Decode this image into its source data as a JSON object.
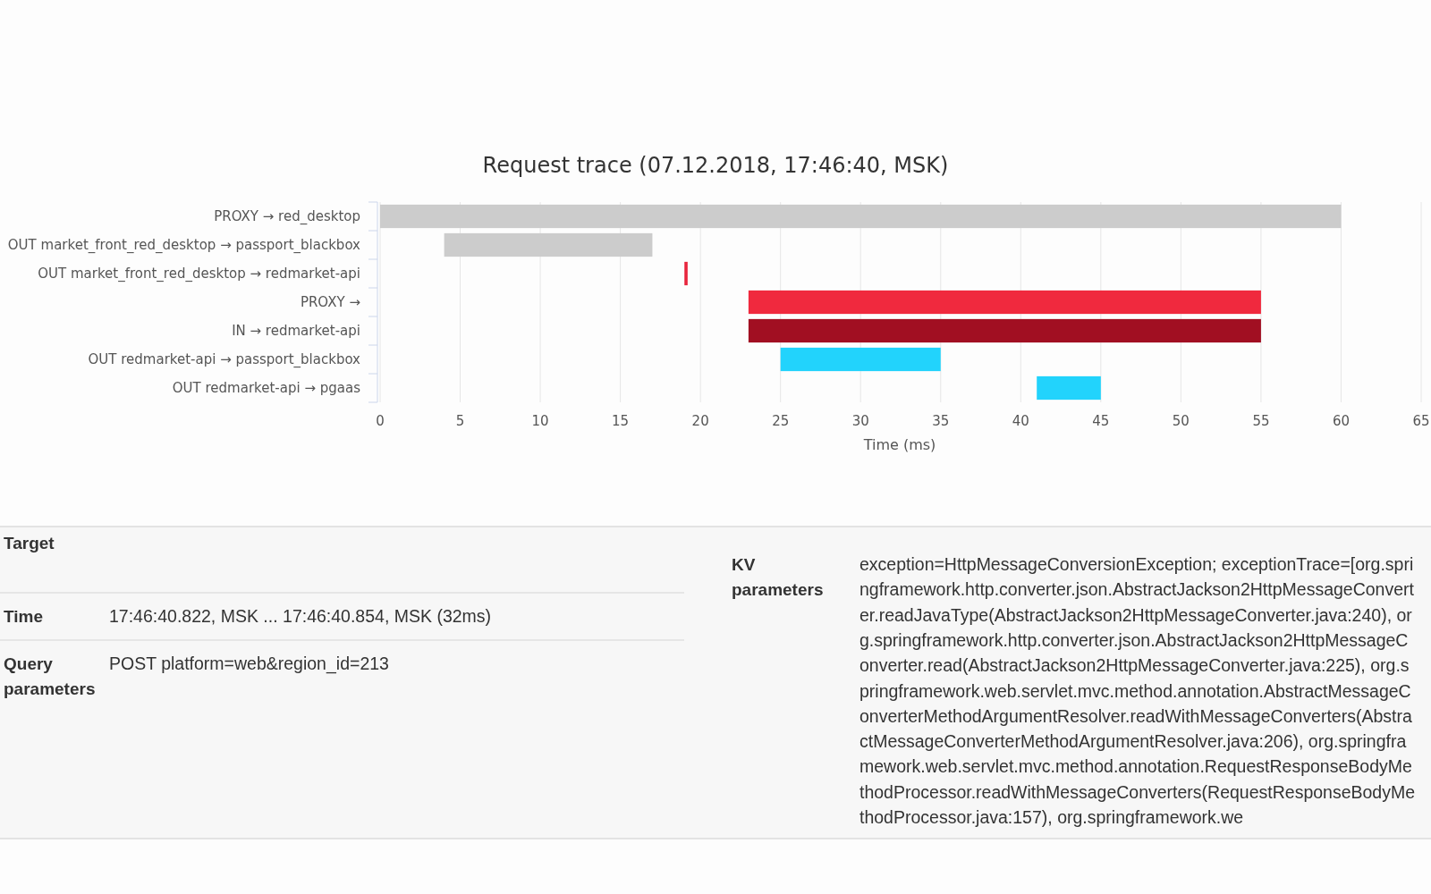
{
  "chart_data": [
    {
      "type": "bar",
      "orientation": "horizontal",
      "title": "Request trace (07.12.2018, 17:46:40, MSK)",
      "xlabel": "Time (ms)",
      "categories": [
        "PROXY → red_desktop",
        "OUT market_front_red_desktop → passport_blackbox",
        "OUT market_front_red_desktop → redmarket-api",
        "PROXY →",
        "IN → redmarket-api",
        "OUT redmarket-api → passport_blackbox",
        "OUT redmarket-api → pgaas"
      ],
      "base": [
        0,
        4,
        19,
        23,
        23,
        25,
        41
      ],
      "values": [
        60,
        13,
        0.2,
        32,
        32,
        10,
        4
      ],
      "colors": [
        "#cccccc",
        "#cccccc",
        "#e8253d",
        "#f0293e",
        "#a10f22",
        "#22d3fc",
        "#22d3fc"
      ],
      "xlim": [
        0,
        65
      ],
      "xticks": [
        0,
        5,
        10,
        15,
        20,
        25,
        30,
        35,
        40,
        45,
        50,
        55,
        60,
        65
      ],
      "grid": "x"
    },
    {
      "type": "other",
      "annotations": [
        "Target",
        "Time",
        "17:46:40.822, MSK ... 17:46:40.854, MSK (32ms)",
        "Query parameters",
        "POST platform=web&region_id=213",
        "KV parameters",
        "exception=HttpMessageConversionException; exceptionTrace=[org.springframework.http.converter.json.AbstractJackson2HttpMessageConverter.readJavaType(AbstractJackson2HttpMessageConverter.java:240), org.springframework.http.converter.json.AbstractJackson2HttpMessageConverter.read(AbstractJackson2HttpMessageConverter.java:225), org.springframework.web.servlet.mvc.method.annotation.AbstractMessageConverterMethodArgumentResolver.readWithMessageConverters(AbstractMessageConverterMethodArgumentResolver.java:206), org.springframework.web.servlet.mvc.method.annotation.RequestResponseBodyMethodProcessor.readWithMessageConverters(RequestResponseBodyMethodProcessor.java:157), org.springframework.we"
      ]
    }
  ]
}
